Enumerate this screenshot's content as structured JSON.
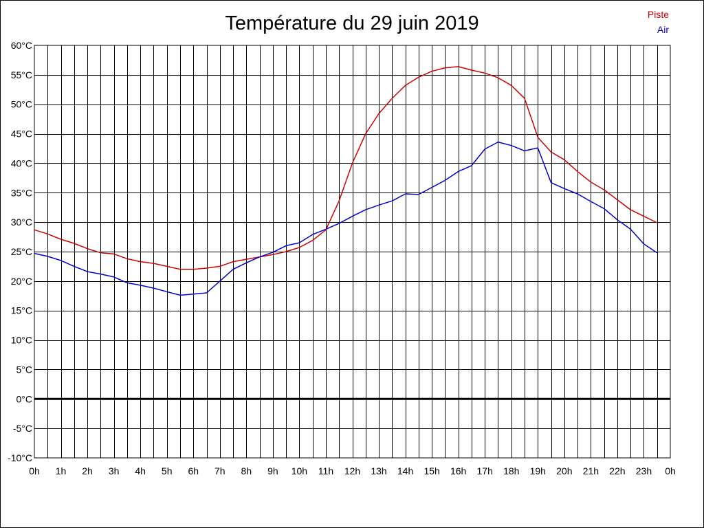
{
  "chart_data": {
    "type": "line",
    "title": "Température du 29 juin 2019",
    "xlabel": "",
    "ylabel": "",
    "xlim": [
      0,
      24
    ],
    "ylim": [
      -10,
      60
    ],
    "grid": true,
    "legend_position": "top-right",
    "x_tick_labels": [
      "0h",
      "1h",
      "2h",
      "3h",
      "4h",
      "5h",
      "6h",
      "7h",
      "8h",
      "9h",
      "10h",
      "11h",
      "12h",
      "13h",
      "14h",
      "15h",
      "16h",
      "17h",
      "18h",
      "19h",
      "20h",
      "21h",
      "22h",
      "23h",
      "0h"
    ],
    "y_tick_labels": [
      "-10°C",
      "-5°C",
      "0°C",
      "5°C",
      "10°C",
      "15°C",
      "20°C",
      "25°C",
      "30°C",
      "35°C",
      "40°C",
      "45°C",
      "50°C",
      "55°C",
      "60°C"
    ],
    "x": [
      0,
      0.5,
      1,
      1.5,
      2,
      2.5,
      3,
      3.5,
      4,
      4.5,
      5,
      5.5,
      6,
      6.5,
      7,
      7.5,
      8,
      8.5,
      9,
      9.5,
      10,
      10.5,
      11,
      11.5,
      12,
      12.5,
      13,
      13.5,
      14,
      14.5,
      15,
      15.5,
      16,
      16.5,
      17,
      17.5,
      18,
      18.5,
      19,
      19.5,
      20,
      20.5,
      21,
      21.5,
      22,
      22.5,
      23,
      23.5
    ],
    "series": [
      {
        "name": "Piste",
        "color": "#cc0000",
        "values": [
          28.7,
          28.0,
          27.1,
          26.4,
          25.5,
          24.8,
          24.6,
          23.8,
          23.3,
          23.0,
          22.5,
          22.0,
          22.0,
          22.2,
          22.5,
          23.3,
          23.7,
          24.1,
          24.5,
          25.0,
          25.7,
          26.9,
          28.7,
          33.6,
          40.0,
          45.0,
          48.4,
          51.0,
          53.2,
          54.6,
          55.6,
          56.2,
          56.4,
          55.8,
          55.3,
          54.5,
          53.2,
          51.0,
          44.4,
          41.9,
          40.6,
          38.6,
          36.8,
          35.5,
          33.8,
          32.1,
          31.0,
          29.9
        ]
      },
      {
        "name": "Air",
        "color": "#0000cc",
        "values": [
          24.7,
          24.2,
          23.5,
          22.5,
          21.6,
          21.2,
          20.7,
          19.7,
          19.3,
          18.8,
          18.2,
          17.6,
          17.8,
          18.0,
          20.0,
          22.0,
          23.1,
          24.1,
          24.9,
          26.0,
          26.5,
          27.9,
          28.8,
          29.8,
          31.0,
          32.1,
          32.9,
          33.6,
          34.8,
          34.7,
          35.9,
          37.1,
          38.6,
          39.6,
          42.4,
          43.6,
          43.0,
          42.1,
          42.6,
          36.7,
          35.7,
          34.8,
          33.5,
          32.3,
          30.4,
          28.8,
          26.3,
          24.8
        ]
      }
    ]
  }
}
